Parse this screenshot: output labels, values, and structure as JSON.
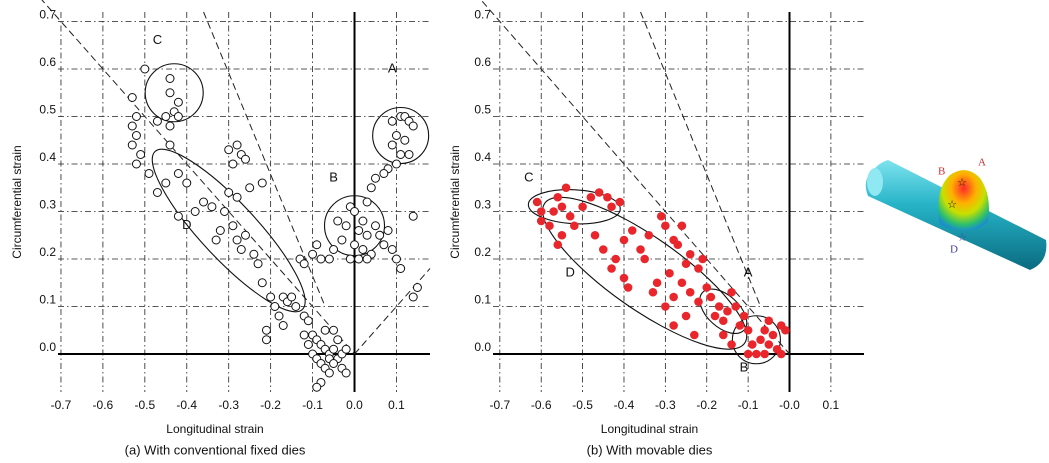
{
  "chart_data": [
    {
      "type": "scatter",
      "caption": "(a) With conventional fixed dies",
      "x_label": "Longitudinal strain",
      "y_label": "Circumferential strain",
      "marker": "open",
      "color": "#111111",
      "annotations": [
        "C",
        "A",
        "B",
        "D"
      ],
      "xlim": [
        -0.75,
        0.18
      ],
      "ylim": [
        -0.08,
        0.72
      ],
      "xticks": [
        -0.7,
        -0.6,
        -0.5,
        -0.4,
        -0.3,
        -0.2,
        -0.1,
        {
          "value": 0,
          "label": "0.0"
        },
        0.1
      ],
      "yticks": [
        {
          "value": 0,
          "label": "0.0"
        },
        0.1,
        0.2,
        0.3,
        0.4,
        0.5,
        0.6,
        0.7
      ],
      "grid": true,
      "x": [
        0.09,
        0.11,
        0.12,
        0.13,
        0.14,
        0.1,
        0.12,
        0.09,
        0.11,
        0.13,
        0.1,
        0.08,
        0.14,
        0.15,
        0.14,
        -0.01,
        0.0,
        0.02,
        -0.02,
        0.01,
        0.03,
        -0.03,
        0.0,
        0.02,
        0.04,
        -0.01,
        0.01,
        0.03,
        0.05,
        0.06,
        0.07,
        0.08,
        0.09,
        0.1,
        0.11,
        0.03,
        0.04,
        0.05,
        0.07,
        -0.04,
        -0.05,
        -0.06,
        -0.08,
        -0.1,
        -0.09,
        -0.44,
        -0.44,
        -0.42,
        -0.43,
        -0.45,
        -0.47,
        -0.44,
        -0.42,
        -0.5,
        -0.53,
        -0.52,
        -0.53,
        -0.52,
        -0.53,
        -0.51,
        -0.52,
        -0.49,
        -0.44,
        -0.42,
        -0.45,
        -0.47,
        -0.4,
        -0.38,
        -0.36,
        -0.34,
        -0.3,
        -0.28,
        -0.27,
        -0.26,
        -0.29,
        -0.3,
        -0.28,
        -0.31,
        -0.29,
        -0.32,
        -0.33,
        -0.28,
        -0.26,
        -0.27,
        -0.24,
        -0.23,
        -0.25,
        -0.22,
        -0.2,
        -0.19,
        -0.17,
        -0.16,
        -0.15,
        -0.18,
        -0.17,
        -0.21,
        -0.21,
        -0.14,
        -0.12,
        -0.11,
        -0.13,
        -0.12,
        -0.42,
        -0.22,
        -0.1,
        -0.09,
        -0.08,
        -0.07,
        -0.06,
        -0.05,
        -0.04,
        -0.03,
        -0.02,
        -0.1,
        -0.09,
        -0.08,
        -0.07,
        -0.06,
        -0.05,
        -0.11,
        -0.12,
        -0.04,
        -0.03,
        -0.08,
        -0.09,
        -0.06,
        -0.02,
        -0.05,
        -0.07
      ],
      "values": [
        0.49,
        0.5,
        0.5,
        0.49,
        0.48,
        0.46,
        0.45,
        0.44,
        0.42,
        0.42,
        0.4,
        0.39,
        0.29,
        0.14,
        0.12,
        0.31,
        0.3,
        0.28,
        0.27,
        0.26,
        0.25,
        0.24,
        0.23,
        0.22,
        0.21,
        0.2,
        0.2,
        0.2,
        0.27,
        0.25,
        0.23,
        0.26,
        0.22,
        0.2,
        0.18,
        0.32,
        0.35,
        0.37,
        0.38,
        0.28,
        0.22,
        0.2,
        0.2,
        0.21,
        0.23,
        0.58,
        0.55,
        0.53,
        0.51,
        0.5,
        0.49,
        0.48,
        0.5,
        0.6,
        0.54,
        0.5,
        0.48,
        0.46,
        0.44,
        0.42,
        0.4,
        0.38,
        0.44,
        0.38,
        0.36,
        0.34,
        0.36,
        0.3,
        0.32,
        0.31,
        0.43,
        0.44,
        0.42,
        0.41,
        0.4,
        0.34,
        0.33,
        0.3,
        0.27,
        0.26,
        0.24,
        0.24,
        0.25,
        0.22,
        0.21,
        0.19,
        0.35,
        0.15,
        0.12,
        0.1,
        0.12,
        0.11,
        0.12,
        0.08,
        0.06,
        0.05,
        0.03,
        0.1,
        0.08,
        0.07,
        0.2,
        0.19,
        0.29,
        0.36,
        0.04,
        0.03,
        0.02,
        0.01,
        0.0,
        0.01,
        -0.01,
        0.0,
        0.01,
        0.0,
        -0.01,
        -0.02,
        -0.03,
        -0.01,
        -0.02,
        0.02,
        0.04,
        0.03,
        -0.03,
        -0.06,
        -0.07,
        -0.04,
        -0.04,
        0.05,
        0.05
      ]
    },
    {
      "type": "scatter",
      "caption": "(b) With movable dies",
      "x_label": "Longitudinal strain",
      "y_label": "Circumferential strain",
      "marker": "filled",
      "color": "#e8262b",
      "annotations": [
        "C",
        "D",
        "A",
        "B"
      ],
      "xlim": [
        -0.76,
        0.18
      ],
      "ylim": [
        -0.08,
        0.72
      ],
      "xticks": [
        -0.7,
        -0.6,
        -0.5,
        -0.4,
        -0.3,
        -0.2,
        -0.1,
        {
          "value": 0,
          "label": "-0.0"
        },
        0.1
      ],
      "yticks": [
        {
          "value": 0,
          "label": "0.0"
        },
        0.1,
        0.2,
        0.3,
        0.4,
        0.5,
        0.6,
        0.7
      ],
      "grid": true,
      "x": [
        -0.61,
        -0.6,
        -0.6,
        -0.58,
        -0.57,
        -0.56,
        -0.55,
        -0.54,
        -0.53,
        -0.52,
        -0.5,
        -0.48,
        -0.46,
        -0.44,
        -0.43,
        -0.41,
        -0.47,
        -0.45,
        -0.42,
        -0.4,
        -0.38,
        -0.36,
        -0.35,
        -0.34,
        -0.31,
        -0.3,
        -0.28,
        -0.26,
        -0.27,
        -0.25,
        -0.24,
        -0.22,
        -0.29,
        -0.32,
        -0.33,
        -0.3,
        -0.28,
        -0.26,
        -0.24,
        -0.22,
        -0.2,
        -0.19,
        -0.18,
        -0.17,
        -0.16,
        -0.15,
        -0.14,
        -0.13,
        -0.12,
        -0.11,
        -0.16,
        -0.14,
        -0.1,
        -0.09,
        -0.08,
        -0.07,
        -0.06,
        -0.05,
        -0.04,
        -0.03,
        -0.02,
        -0.01,
        -0.02,
        -0.06,
        -0.1,
        -0.05,
        -0.21,
        -0.23,
        -0.4,
        -0.39,
        -0.43,
        -0.56,
        -0.55,
        -0.28,
        -0.25
      ],
      "values": [
        0.32,
        0.3,
        0.28,
        0.27,
        0.3,
        0.33,
        0.31,
        0.35,
        0.29,
        0.27,
        0.31,
        0.33,
        0.34,
        0.33,
        0.31,
        0.32,
        0.25,
        0.22,
        0.2,
        0.24,
        0.26,
        0.22,
        0.2,
        0.25,
        0.29,
        0.27,
        0.24,
        0.27,
        0.23,
        0.19,
        0.21,
        0.18,
        0.17,
        0.15,
        0.13,
        0.1,
        0.12,
        0.15,
        0.13,
        0.11,
        0.14,
        0.12,
        0.08,
        0.1,
        0.07,
        0.09,
        0.13,
        0.1,
        0.06,
        0.08,
        0.04,
        0.02,
        0.05,
        0.02,
        0.0,
        0.03,
        0.05,
        0.02,
        0.04,
        0.01,
        0.06,
        0.05,
        0.0,
        0.0,
        0.0,
        0.07,
        0.2,
        0.04,
        0.16,
        0.14,
        0.18,
        0.23,
        0.25,
        0.06,
        0.08
      ]
    }
  ],
  "inset": {
    "labels": [
      "B",
      "A",
      "D"
    ]
  }
}
